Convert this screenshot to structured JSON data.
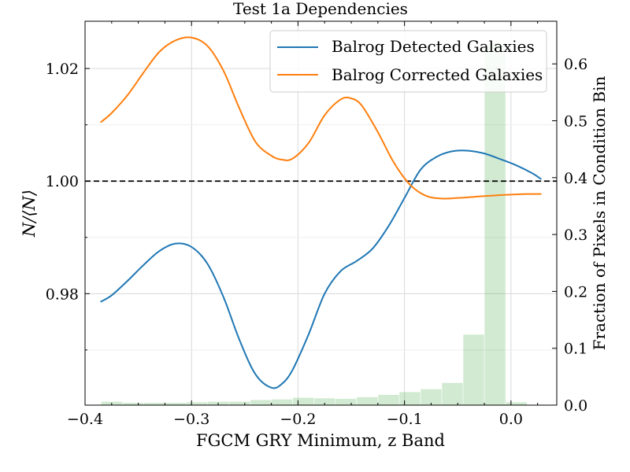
{
  "chart_data": {
    "type": "line",
    "title": "Test 1a Dependencies",
    "xlabel": "FGCM GRY Minimum, z Band",
    "ylabel": "N/⟨N⟩",
    "ylabel_right": "Fraction of Pixels in Condition Bin",
    "xlim": [
      -0.4,
      0.043
    ],
    "ylim": [
      0.9602,
      1.0284
    ],
    "ylim_right": [
      0.0,
      0.675
    ],
    "xticks": [
      -0.4,
      -0.3,
      -0.2,
      -0.1,
      0.0
    ],
    "xtick_labels": [
      "−0.4",
      "−0.3",
      "−0.2",
      "−0.1",
      "0.0"
    ],
    "yticks": [
      0.98,
      1.0,
      1.02
    ],
    "ytick_labels": [
      "0.98",
      "1.00",
      "1.02"
    ],
    "yticks_right": [
      0.0,
      0.1,
      0.2,
      0.3,
      0.4,
      0.5,
      0.6
    ],
    "ytick_labels_right": [
      "0.0",
      "0.1",
      "0.2",
      "0.3",
      "0.4",
      "0.5",
      "0.6"
    ],
    "grid": true,
    "legend_position": "top-right",
    "reference_line": 1.0,
    "series": [
      {
        "name": "Balrog Detected Galaxies",
        "color": "#1f77b4",
        "x": [
          -0.385,
          -0.375,
          -0.36,
          -0.345,
          -0.33,
          -0.315,
          -0.3,
          -0.285,
          -0.27,
          -0.255,
          -0.24,
          -0.225,
          -0.215,
          -0.205,
          -0.19,
          -0.175,
          -0.16,
          -0.145,
          -0.13,
          -0.115,
          -0.1,
          -0.085,
          -0.07,
          -0.055,
          -0.04,
          -0.025,
          -0.01,
          0.005,
          0.02,
          0.028
        ],
        "values": [
          0.9786,
          0.9797,
          0.9823,
          0.9851,
          0.9876,
          0.9889,
          0.9883,
          0.9853,
          0.9794,
          0.9718,
          0.9657,
          0.9633,
          0.964,
          0.9665,
          0.9728,
          0.98,
          0.984,
          0.9858,
          0.988,
          0.992,
          0.997,
          1.002,
          1.0043,
          1.0053,
          1.0054,
          1.0049,
          1.0039,
          1.0028,
          1.0014,
          1.0004
        ]
      },
      {
        "name": "Balrog Corrected Galaxies",
        "color": "#ff7f0e",
        "x": [
          -0.385,
          -0.375,
          -0.36,
          -0.345,
          -0.33,
          -0.315,
          -0.3,
          -0.285,
          -0.27,
          -0.255,
          -0.24,
          -0.225,
          -0.215,
          -0.205,
          -0.19,
          -0.175,
          -0.16,
          -0.15,
          -0.14,
          -0.125,
          -0.11,
          -0.095,
          -0.08,
          -0.065,
          -0.05,
          -0.035,
          -0.02,
          0.0,
          0.015,
          0.028
        ],
        "values": [
          1.0105,
          1.0121,
          1.0153,
          1.0193,
          1.023,
          1.025,
          1.0255,
          1.024,
          1.0196,
          1.0129,
          1.007,
          1.0045,
          1.0038,
          1.004,
          1.0068,
          1.0117,
          1.0145,
          1.0147,
          1.0134,
          1.0087,
          1.0033,
          0.9994,
          0.9974,
          0.9969,
          0.997,
          0.9972,
          0.9974,
          0.9976,
          0.9977,
          0.9977
        ]
      }
    ],
    "histogram": {
      "color": "#2ca02c",
      "bar_width": 0.0195,
      "x": [
        -0.375,
        -0.355,
        -0.335,
        -0.315,
        -0.295,
        -0.275,
        -0.255,
        -0.235,
        -0.215,
        -0.195,
        -0.175,
        -0.155,
        -0.135,
        -0.115,
        -0.095,
        -0.075,
        -0.055,
        -0.035,
        -0.015,
        0.005,
        0.025
      ],
      "values": [
        0.006,
        0.004,
        0.004,
        0.004,
        0.005,
        0.006,
        0.006,
        0.009,
        0.01,
        0.013,
        0.012,
        0.011,
        0.014,
        0.018,
        0.023,
        0.028,
        0.039,
        0.124,
        0.636,
        0.005,
        0.0
      ]
    }
  }
}
